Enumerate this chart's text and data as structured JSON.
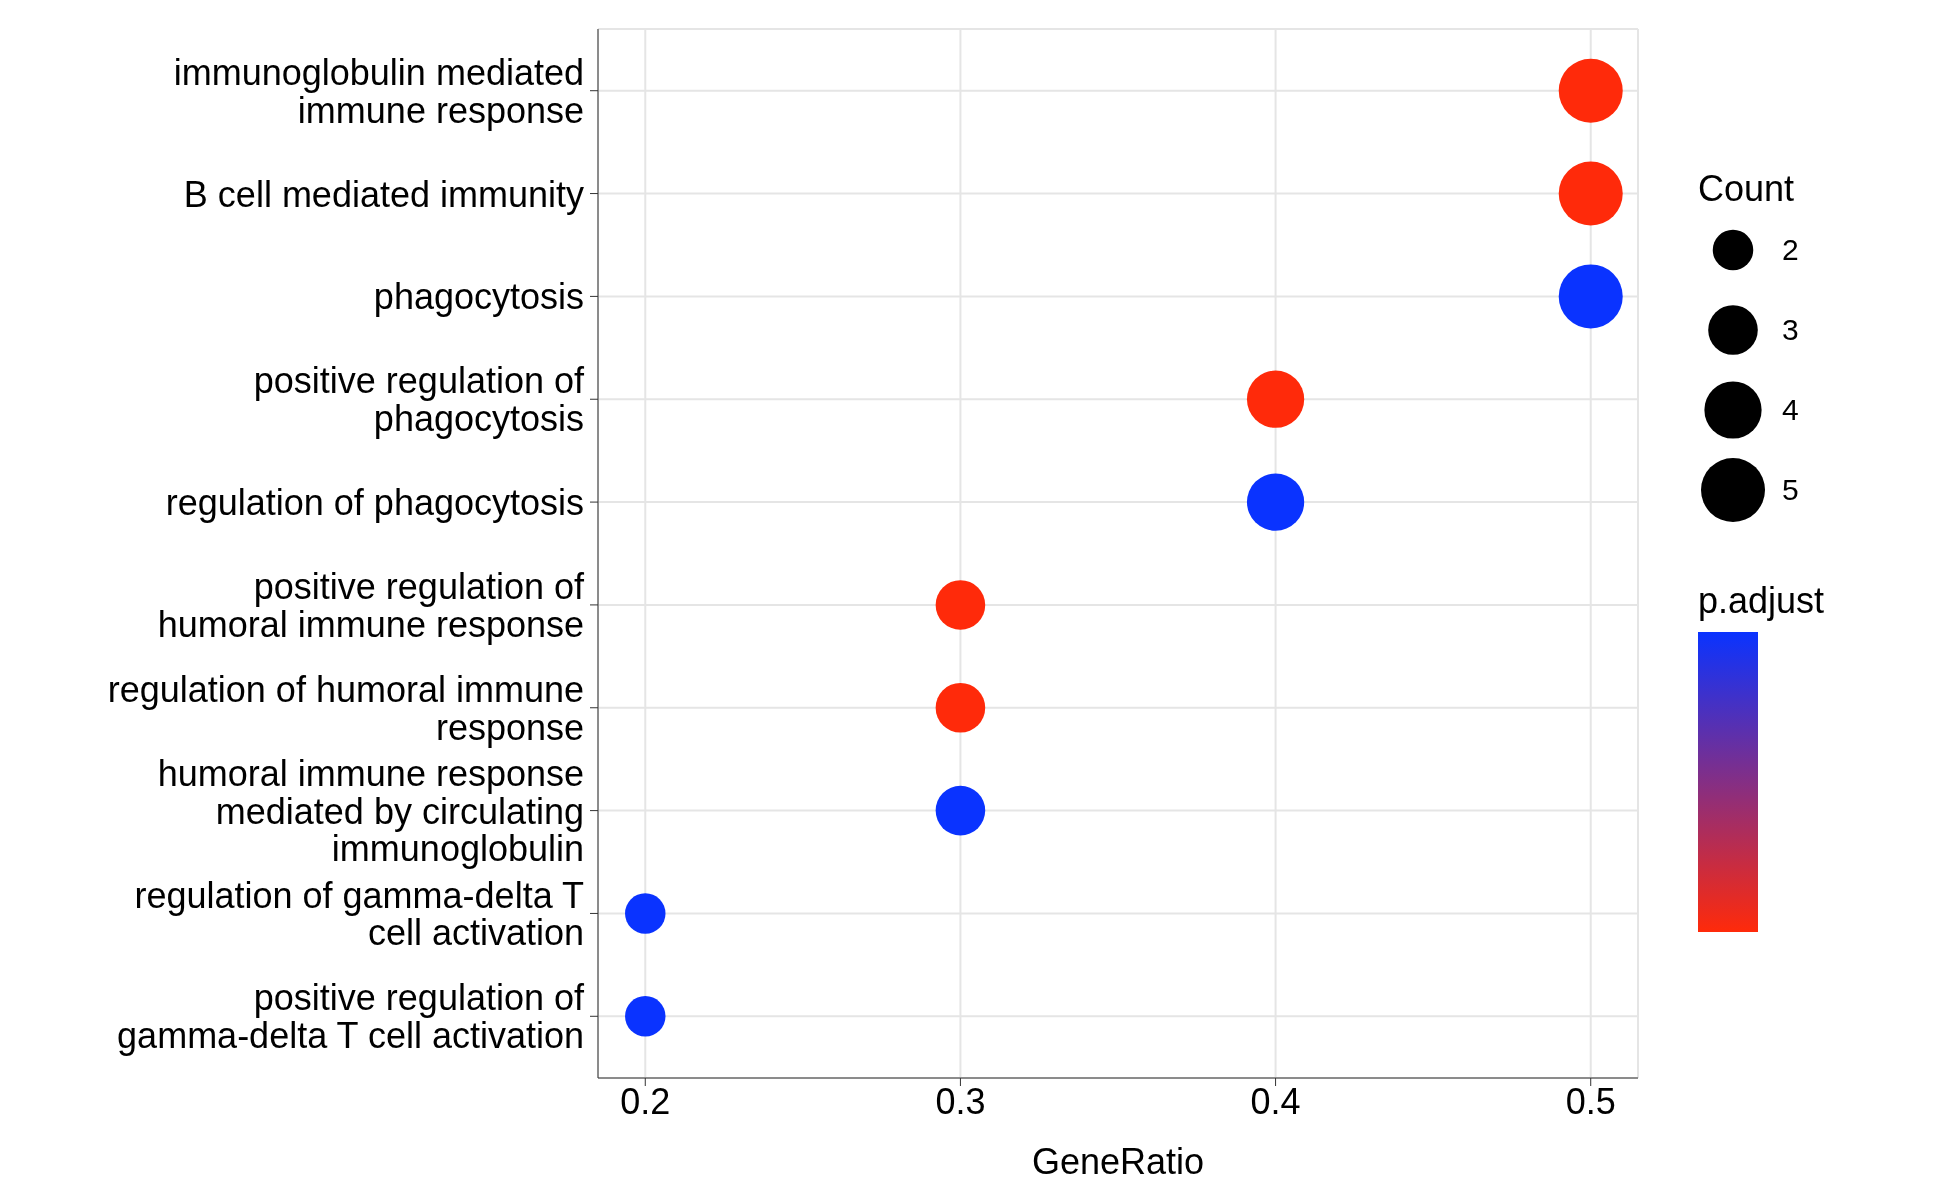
{
  "chart_data": {
    "type": "bubble",
    "orientation": "horizontal",
    "categories": [
      "immunoglobulin mediated immune response",
      "B cell mediated immunity",
      "phagocytosis",
      "positive regulation of phagocytosis",
      "regulation of phagocytosis",
      "positive regulation of humoral immune response",
      "regulation of humoral immune response",
      "humoral immune response mediated by circulating immunoglobulin",
      "regulation of gamma-delta T cell activation",
      "positive regulation of gamma-delta T cell activation"
    ],
    "values": [
      0.5,
      0.5,
      0.5,
      0.4,
      0.4,
      0.3,
      0.3,
      0.3,
      0.2,
      0.2
    ],
    "sizes": [
      5,
      5,
      5,
      4,
      4,
      3,
      3,
      3,
      2,
      2
    ],
    "colors": [
      "#ff2a0a",
      "#ff2a0a",
      "#0a33ff",
      "#ff2a0a",
      "#0a33ff",
      "#ff2a0a",
      "#ff2a0a",
      "#0a33ff",
      "#0a33ff",
      "#0a33ff"
    ],
    "size_legend": [
      2,
      3,
      4,
      5
    ],
    "legend_title": "Count",
    "clabel": "p.adjust",
    "xlabel": "GeneRatio",
    "xlim": [
      0.185,
      0.515
    ],
    "xticks": [
      0.2,
      0.3,
      0.4,
      0.5
    ],
    "grid": true
  }
}
